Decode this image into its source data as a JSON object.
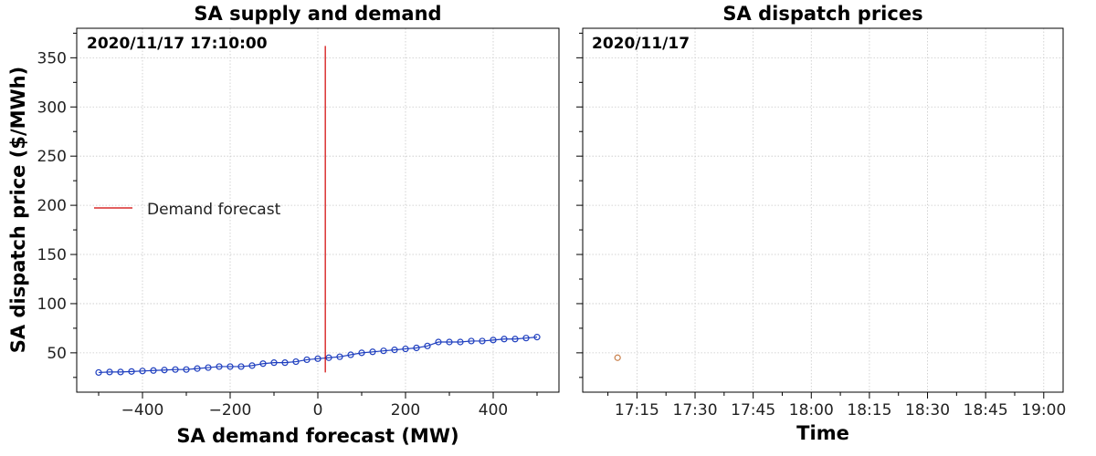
{
  "chart_data": [
    {
      "type": "line",
      "title": "SA supply and demand",
      "timestamp": "2020/11/17 17:10:00",
      "xlabel": "SA demand forecast (MW)",
      "ylabel": "SA dispatch price ($/MWh)",
      "xlim": [
        -550,
        550
      ],
      "ylim": [
        10,
        380
      ],
      "xticks": [
        -400,
        -200,
        0,
        200,
        400
      ],
      "xtick_labels": [
        "−400",
        "−200",
        "0",
        "200",
        "400"
      ],
      "yticks": [
        50,
        100,
        150,
        200,
        250,
        300,
        350
      ],
      "ytick_labels": [
        "50",
        "100",
        "150",
        "200",
        "250",
        "300",
        "350"
      ],
      "grid": true,
      "legend": {
        "placement": "center-left",
        "entries": [
          "Demand forecast"
        ]
      },
      "series": [
        {
          "kind": "supply",
          "color": "#1f3fbf",
          "marker": "open-circle",
          "x": [
            -500,
            -475,
            -450,
            -425,
            -400,
            -375,
            -350,
            -325,
            -300,
            -275,
            -250,
            -225,
            -200,
            -175,
            -150,
            -125,
            -100,
            -75,
            -50,
            -25,
            0,
            25,
            50,
            75,
            100,
            125,
            150,
            175,
            200,
            225,
            250,
            275,
            300,
            325,
            350,
            375,
            400,
            425,
            450,
            475,
            500
          ],
          "y": [
            30,
            30.5,
            30.5,
            31,
            31.5,
            32,
            32.5,
            33,
            33,
            34,
            35,
            36,
            36,
            36,
            37,
            39,
            40,
            40,
            41,
            43,
            44,
            45,
            46,
            48,
            50,
            51,
            52,
            53,
            54,
            55,
            57,
            61,
            61,
            61,
            62,
            62,
            63,
            64,
            64,
            65,
            66
          ]
        },
        {
          "name": "Demand forecast",
          "kind": "vertical-line",
          "color": "#d00000",
          "x": 17,
          "y_range": [
            30,
            362
          ]
        }
      ]
    },
    {
      "type": "scatter",
      "title": "SA dispatch prices",
      "timestamp": "2020/11/17",
      "xlabel": "Time",
      "xlim_minutes": [
        1021,
        1145
      ],
      "xticks_minutes": [
        1035,
        1050,
        1065,
        1080,
        1095,
        1110,
        1125,
        1140
      ],
      "xtick_labels": [
        "17:15",
        "17:30",
        "17:45",
        "18:00",
        "18:15",
        "18:30",
        "18:45",
        "19:00"
      ],
      "ylim": [
        10,
        380
      ],
      "grid": true,
      "series": [
        {
          "color": "#c87f4a",
          "marker": "open-circle",
          "points": [
            {
              "time": "17:10",
              "minutes": 1030,
              "price": 45
            }
          ]
        }
      ]
    }
  ]
}
